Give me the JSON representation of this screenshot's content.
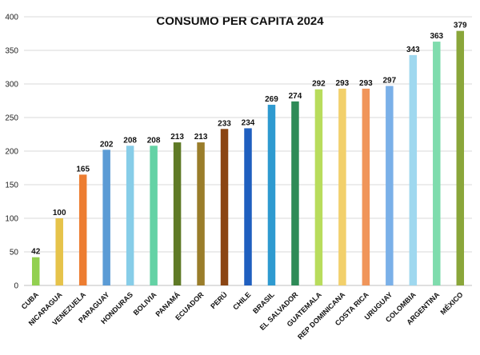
{
  "chart_data": {
    "type": "bar",
    "title": "CONSUMO PER CAPITA 2024",
    "xlabel": "",
    "ylabel": "",
    "ylim": [
      0,
      400
    ],
    "yticks": [
      0,
      50,
      100,
      150,
      200,
      250,
      300,
      350,
      400
    ],
    "grid": true,
    "legend": "none",
    "categories": [
      "CUBA",
      "NICARAGUA",
      "VENEZUELA",
      "PARAGUAY",
      "HONDURAS",
      "BOLIVIA",
      "PANAMÁ",
      "ECUADOR",
      "PERÚ",
      "CHILE",
      "BRASIL",
      "EL SALVADOR",
      "GUATEMALA",
      "REP DOMINICANA",
      "COSTA RICA",
      "URUGUAY",
      "COLOMBIA",
      "ARGENTINA",
      "MÉXICO"
    ],
    "values": [
      42,
      100,
      165,
      202,
      208,
      208,
      213,
      213,
      233,
      234,
      269,
      274,
      292,
      293,
      293,
      297,
      343,
      363,
      379
    ],
    "colors": [
      "#92d050",
      "#e6c34a",
      "#ed7d31",
      "#5b9bd5",
      "#87cde8",
      "#64d2a5",
      "#5f7a26",
      "#9a7d2a",
      "#8b4513",
      "#1f5fbf",
      "#2e9ad0",
      "#2e8b57",
      "#b8dc5c",
      "#f2d06b",
      "#f0955a",
      "#7ab0e8",
      "#9fd8ef",
      "#7fdcad",
      "#8aa63a"
    ]
  }
}
